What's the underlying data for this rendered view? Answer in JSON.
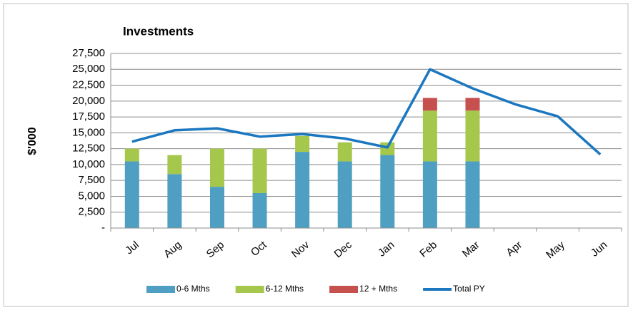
{
  "chart_data": {
    "type": "bar",
    "title": "Investments",
    "y_label": "$'000",
    "categories": [
      "Jul",
      "Aug",
      "Sep",
      "Oct",
      "Nov",
      "Dec",
      "Jan",
      "Feb",
      "Mar",
      "Apr",
      "May",
      "Jun"
    ],
    "series": [
      {
        "name": "0-6 Mths",
        "type": "bar",
        "color": "#4f9fc2",
        "values": [
          10500,
          8500,
          6500,
          5500,
          12000,
          10500,
          11500,
          10500,
          10500,
          null,
          null,
          null
        ]
      },
      {
        "name": "6-12 Mths",
        "type": "bar",
        "color": "#a5c84c",
        "values": [
          2000,
          3000,
          6000,
          7000,
          2500,
          3000,
          2000,
          8000,
          8000,
          null,
          null,
          null
        ]
      },
      {
        "name": "12 + Mths",
        "type": "bar",
        "color": "#c6504d",
        "values": [
          0,
          0,
          0,
          0,
          0,
          0,
          0,
          2000,
          2000,
          null,
          null,
          null
        ]
      },
      {
        "name": "Total PY",
        "type": "line",
        "color": "#1a77c0",
        "values": [
          13600,
          15400,
          15700,
          14400,
          14800,
          14100,
          12700,
          25000,
          22000,
          19500,
          17600,
          11600
        ]
      }
    ],
    "ylim": [
      0,
      27500
    ],
    "yticks": [
      {
        "value": 0,
        "label": "-"
      },
      {
        "value": 2500,
        "label": "2,500"
      },
      {
        "value": 5000,
        "label": "5,000"
      },
      {
        "value": 7500,
        "label": "7,500"
      },
      {
        "value": 10000,
        "label": "10,000"
      },
      {
        "value": 12500,
        "label": "12,500"
      },
      {
        "value": 15000,
        "label": "15,000"
      },
      {
        "value": 17500,
        "label": "17,500"
      },
      {
        "value": 20000,
        "label": "20,000"
      },
      {
        "value": 22500,
        "label": "22,500"
      },
      {
        "value": 25000,
        "label": "25,000"
      },
      {
        "value": 27500,
        "label": "27,500"
      }
    ],
    "grid": true,
    "legend": "bottom"
  }
}
